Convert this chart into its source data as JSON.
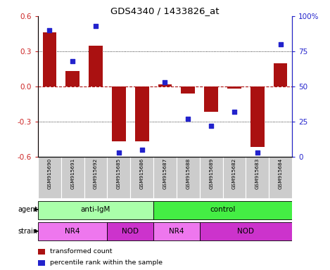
{
  "title": "GDS4340 / 1433826_at",
  "samples": [
    "GSM915690",
    "GSM915691",
    "GSM915692",
    "GSM915685",
    "GSM915686",
    "GSM915687",
    "GSM915688",
    "GSM915689",
    "GSM915682",
    "GSM915683",
    "GSM915684"
  ],
  "bar_values": [
    0.46,
    0.13,
    0.35,
    -0.47,
    -0.47,
    0.02,
    -0.06,
    -0.22,
    -0.02,
    -0.52,
    0.2
  ],
  "dot_values": [
    90,
    68,
    93,
    3,
    5,
    53,
    27,
    22,
    32,
    3,
    80
  ],
  "bar_color": "#aa1111",
  "dot_color": "#2222cc",
  "ylim": [
    -0.6,
    0.6
  ],
  "y_left_ticks": [
    -0.6,
    -0.3,
    0.0,
    0.3,
    0.6
  ],
  "y_right_ticks": [
    0,
    25,
    50,
    75,
    100
  ],
  "y_right_labels": [
    "0",
    "25",
    "50",
    "75",
    "100%"
  ],
  "hline_y": 0.0,
  "dotted_lines": [
    -0.3,
    0.3
  ],
  "agent_labels": [
    {
      "label": "anti-IgM",
      "start": 0,
      "end": 5,
      "color": "#aaffaa"
    },
    {
      "label": "control",
      "start": 5,
      "end": 11,
      "color": "#44ee44"
    }
  ],
  "strain_segments": [
    {
      "label": "NR4",
      "start": 0,
      "end": 3,
      "color": "#ee77ee"
    },
    {
      "label": "NOD",
      "start": 3,
      "end": 5,
      "color": "#cc33cc"
    },
    {
      "label": "NR4",
      "start": 5,
      "end": 7,
      "color": "#ee77ee"
    },
    {
      "label": "NOD",
      "start": 7,
      "end": 11,
      "color": "#cc33cc"
    }
  ],
  "legend_items": [
    {
      "color": "#aa1111",
      "label": "transformed count"
    },
    {
      "color": "#2222cc",
      "label": "percentile rank within the sample"
    }
  ],
  "xlabel_agent": "agent",
  "xlabel_strain": "strain",
  "bar_width": 0.6,
  "bg_color": "#ffffff",
  "tick_color_left": "#cc2222",
  "tick_color_right": "#2222cc",
  "sample_bg_color": "#cccccc"
}
